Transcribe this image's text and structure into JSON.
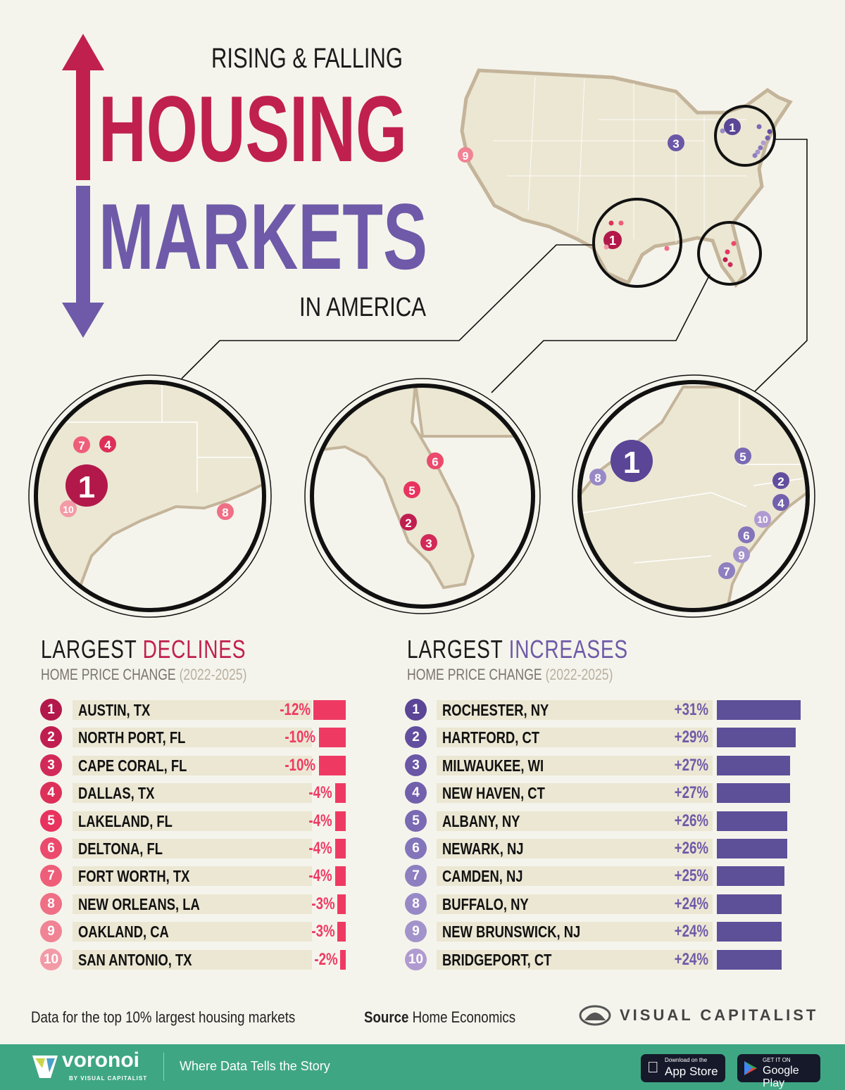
{
  "header": {
    "kicker": "RISING & FALLING",
    "title_line1": "HOUSING",
    "title_line2": "MARKETS",
    "suffix": "IN AMERICA"
  },
  "colors": {
    "background": "#f5f4ec",
    "land": "#ebe7d3",
    "border": "#c4b49a",
    "decline": "#c0204e",
    "decline_bar": "#ee3a63",
    "increase": "#6e5aa8",
    "increase_bar": "#5e4f99",
    "footer": "#3fa683"
  },
  "declines": {
    "title_prefix": "LARGEST ",
    "title_highlight": "DECLINES",
    "subtitle": "HOME PRICE CHANGE ",
    "subtitle_years": "(2022-2025)",
    "rank_colors": [
      "#b3184a",
      "#c01e50",
      "#d22a58",
      "#dc3058",
      "#e8335f",
      "#eb4a6c",
      "#ee5e79",
      "#ef6f85",
      "#f08394",
      "#f39aa7"
    ]
  },
  "increases": {
    "title_prefix": "LARGEST ",
    "title_highlight": "INCREASES",
    "subtitle": "HOME PRICE CHANGE ",
    "subtitle_years": "(2022-2025)",
    "rank_colors": [
      "#5a4596",
      "#624e9e",
      "#6a57a6",
      "#7260ad",
      "#7a69b3",
      "#8474ba",
      "#8e7fc0",
      "#9889c6",
      "#a393cb",
      "#b09ad0"
    ]
  },
  "chart_data": [
    {
      "type": "bar",
      "title": "LARGEST DECLINES",
      "subtitle": "HOME PRICE CHANGE (2022-2025)",
      "categories": [
        "AUSTIN, TX",
        "NORTH PORT, FL",
        "CAPE CORAL, FL",
        "DALLAS, TX",
        "LAKELAND, FL",
        "DELTONA, FL",
        "FORT WORTH, TX",
        "NEW ORLEANS, LA",
        "OAKLAND, CA",
        "SAN ANTONIO, TX"
      ],
      "values": [
        -12,
        -10,
        -10,
        -4,
        -4,
        -4,
        -4,
        -3,
        -3,
        -2
      ],
      "labels": [
        "-12%",
        "-10%",
        "-10%",
        "-4%",
        "-4%",
        "-4%",
        "-4%",
        "-3%",
        "-3%",
        "-2%"
      ],
      "orientation": "horizontal"
    },
    {
      "type": "bar",
      "title": "LARGEST INCREASES",
      "subtitle": "HOME PRICE CHANGE (2022-2025)",
      "categories": [
        "ROCHESTER, NY",
        "HARTFORD, CT",
        "MILWAUKEE, WI",
        "NEW HAVEN, CT",
        "ALBANY, NY",
        "NEWARK, NJ",
        "CAMDEN, NJ",
        "BUFFALO, NY",
        "NEW BRUNSWICK, NJ",
        "BRIDGEPORT, CT"
      ],
      "values": [
        31,
        29,
        27,
        27,
        26,
        26,
        25,
        24,
        24,
        24
      ],
      "labels": [
        "+31%",
        "+29%",
        "+27%",
        "+27%",
        "+26%",
        "+26%",
        "+25%",
        "+24%",
        "+24%",
        "+24%"
      ],
      "orientation": "horizontal"
    }
  ],
  "footer": {
    "note": "Data for the top 10% largest housing markets",
    "source_label": "Source",
    "source": " Home Economics",
    "brand": "VISUAL CAPITALIST"
  },
  "bottom_bar": {
    "logo": "voronoi",
    "logo_sub": "BY VISUAL CAPITALIST",
    "tagline": "Where Data Tells the Story",
    "app_store_small": "Download on the",
    "app_store": "App Store",
    "google_play_small": "GET IT ON",
    "google_play": "Google Play"
  }
}
